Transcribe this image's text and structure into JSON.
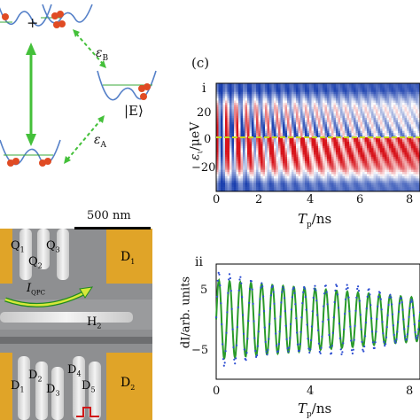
{
  "panel_c": {
    "panel_label": "(c)",
    "sub_i": "i",
    "sub_ii": "ii",
    "ylabel_i": "ε",
    "ylabel_i_sub": "ι",
    "ylabel_i_unit": "/μeV",
    "ylabel_ii": "dI/arb. units",
    "xlabel_main": "T",
    "xlabel_sub": "p",
    "xlabel_unit": "/ns",
    "x_ticks": [
      "0",
      "2",
      "4",
      "6",
      "8"
    ],
    "y_ticks_i": [
      "20",
      "0",
      "−20"
    ],
    "y_ticks_ii": [
      "5",
      "−5"
    ],
    "x_ticks_ii": [
      "0",
      "4",
      "8"
    ]
  },
  "diagram_top": {
    "plus": "+",
    "eps_b": "ε",
    "eps_b_sub": "B",
    "eps_a": "ε",
    "eps_a_sub": "A",
    "E_state": "|E⟩"
  },
  "sem": {
    "scale": "500 nm",
    "Q1": "Q",
    "Q1_sub": "1",
    "Q2": "Q",
    "Q2_sub": "2",
    "Q3": "Q",
    "Q3_sub": "3",
    "D1_top": "D",
    "D1_top_sub": "1",
    "H2": "H",
    "H2_sub": "2",
    "IQPC": "I",
    "IQPC_sub": "QPC",
    "D1": "D",
    "D1_sub": "1",
    "D2": "D",
    "D2_sub": "2",
    "D3": "D",
    "D3_sub": "3",
    "D4": "D",
    "D4_sub": "4",
    "D5": "D",
    "D5_sub": "5",
    "D2_right": "D",
    "D2_right_sub": "2"
  },
  "chart_data": [
    {
      "type": "heatmap",
      "xlabel": "T_p/ns",
      "ylabel": "ε_ι/μeV",
      "xlim": [
        0,
        8
      ],
      "ylim": [
        -35,
        35
      ],
      "colors": {
        "positive": "#d8141b",
        "negative": "#1a3fae",
        "zero": "#ffffff"
      }
    },
    {
      "type": "line",
      "xlabel": "T_p/ns",
      "ylabel": "dI/arb. units",
      "xlim": [
        0,
        8
      ],
      "ylim": [
        -8,
        8
      ],
      "series": [
        {
          "style": "green-fit",
          "amplitude_start": 5.5,
          "amplitude_end": 3,
          "period_ns": 0.42
        },
        {
          "style": "blue-dots",
          "amplitude_start": 6,
          "amplitude_end": 3.2,
          "period_ns": 0.42
        }
      ],
      "colors": {
        "fit": "#2a9a2a",
        "data": "#2d4ed1"
      }
    }
  ]
}
